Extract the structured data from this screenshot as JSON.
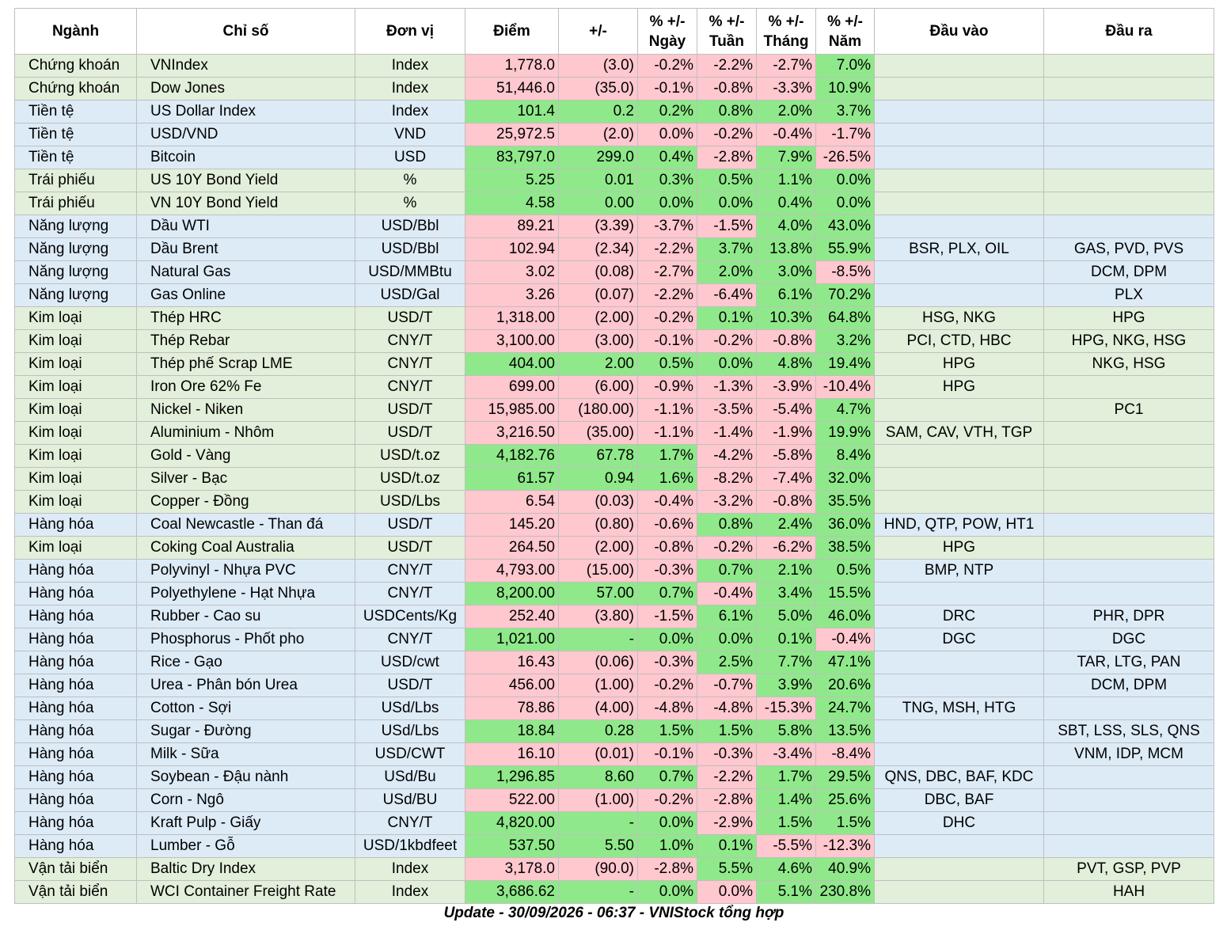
{
  "columns": [
    "Ngành",
    "Chỉ số",
    "Đơn vị",
    "Điểm",
    "+/-",
    "% +/-\nNgày",
    "% +/-\nTuần",
    "% +/-\nTháng",
    "% +/-\nNăm",
    "Đầu vào",
    "Đầu ra"
  ],
  "settings": {
    "sector_colors": {
      "Chứng khoán": "#e2efda",
      "Tiền tệ": "#ddebf7",
      "Trái phiếu": "#e2efda",
      "Năng lượng": "#ddebf7",
      "Kim loại": "#e2efda",
      "Hàng hóa": "#ddebf7",
      "Vận tải biển": "#e2efda"
    },
    "up_color": "#8fe98a",
    "down_color": "#ffc7ce"
  },
  "rows": [
    [
      "Chứng khoán",
      "VNIndex",
      "Index",
      "1,778.0",
      "(3.0)",
      "-0.2%",
      "-2.2%",
      "-2.7%",
      "7.0%",
      null,
      null
    ],
    [
      "Chứng khoán",
      "Dow Jones",
      "Index",
      "51,446.0",
      "(35.0)",
      "-0.1%",
      "-0.8%",
      "-3.3%",
      "10.9%",
      null,
      null
    ],
    [
      "Tiền tệ",
      "US Dollar Index",
      "Index",
      "101.4",
      "0.2",
      "0.2%",
      "0.8%",
      "2.0%",
      "3.7%",
      null,
      null
    ],
    [
      "Tiền tệ",
      "USD/VND",
      "VND",
      "25,972.5",
      "(2.0)",
      "0.0%",
      "-0.2%",
      "-0.4%",
      "-1.7%",
      null,
      null
    ],
    [
      "Tiền tệ",
      "Bitcoin",
      "USD",
      "83,797.0",
      "299.0",
      "0.4%",
      "-2.8%",
      "7.9%",
      "-26.5%",
      null,
      null
    ],
    [
      "Trái phiếu",
      "US 10Y Bond Yield",
      "%",
      "5.25",
      "0.01",
      "0.3%",
      "0.5%",
      "1.1%",
      "0.0%",
      null,
      null
    ],
    [
      "Trái phiếu",
      "VN 10Y Bond Yield",
      "%",
      "4.58",
      "0.00",
      "0.0%",
      "0.0%",
      "0.4%",
      "0.0%",
      null,
      null
    ],
    [
      "Năng lượng",
      "Dầu WTI",
      "USD/Bbl",
      "89.21",
      "(3.39)",
      "-3.7%",
      "-1.5%",
      "4.0%",
      "43.0%",
      null,
      null
    ],
    [
      "Năng lượng",
      "Dầu Brent",
      "USD/Bbl",
      "102.94",
      "(2.34)",
      "-2.2%",
      "3.7%",
      "13.8%",
      "55.9%",
      "BSR, PLX, OIL",
      "GAS, PVD, PVS"
    ],
    [
      "Năng lượng",
      "Natural Gas",
      "USD/MMBtu",
      "3.02",
      "(0.08)",
      "-2.7%",
      "2.0%",
      "3.0%",
      "-8.5%",
      null,
      "DCM, DPM"
    ],
    [
      "Năng lượng",
      "Gas Online",
      "USD/Gal",
      "3.26",
      "(0.07)",
      "-2.2%",
      "-6.4%",
      "6.1%",
      "70.2%",
      null,
      "PLX"
    ],
    [
      "Kim loại",
      "Thép HRC",
      "USD/T",
      "1,318.00",
      "(2.00)",
      "-0.2%",
      "0.1%",
      "10.3%",
      "64.8%",
      "HSG, NKG",
      "HPG"
    ],
    [
      "Kim loại",
      "Thép Rebar",
      "CNY/T",
      "3,100.00",
      "(3.00)",
      "-0.1%",
      "-0.2%",
      "-0.8%",
      "3.2%",
      "PCI, CTD, HBC",
      "HPG, NKG, HSG"
    ],
    [
      "Kim loại",
      "Thép phế Scrap LME",
      "CNY/T",
      "404.00",
      "2.00",
      "0.5%",
      "0.0%",
      "4.8%",
      "19.4%",
      "HPG",
      "NKG, HSG"
    ],
    [
      "Kim loại",
      "Iron Ore 62% Fe",
      "CNY/T",
      "699.00",
      "(6.00)",
      "-0.9%",
      "-1.3%",
      "-3.9%",
      "-10.4%",
      "HPG",
      null
    ],
    [
      "Kim loại",
      "Nickel - Niken",
      "USD/T",
      "15,985.00",
      "(180.00)",
      "-1.1%",
      "-3.5%",
      "-5.4%",
      "4.7%",
      null,
      "PC1"
    ],
    [
      "Kim loại",
      "Aluminium - Nhôm",
      "USD/T",
      "3,216.50",
      "(35.00)",
      "-1.1%",
      "-1.4%",
      "-1.9%",
      "19.9%",
      "SAM, CAV, VTH, TGP",
      null
    ],
    [
      "Kim loại",
      "Gold - Vàng",
      "USD/t.oz",
      "4,182.76",
      "67.78",
      "1.7%",
      "-4.2%",
      "-5.8%",
      "8.4%",
      null,
      null
    ],
    [
      "Kim loại",
      "Silver - Bạc",
      "USD/t.oz",
      "61.57",
      "0.94",
      "1.6%",
      "-8.2%",
      "-7.4%",
      "32.0%",
      null,
      null
    ],
    [
      "Kim loại",
      "Copper - Đồng",
      "USD/Lbs",
      "6.54",
      "(0.03)",
      "-0.4%",
      "-3.2%",
      "-0.8%",
      "35.5%",
      null,
      null
    ],
    [
      "Hàng hóa",
      "Coal Newcastle - Than đá",
      "USD/T",
      "145.20",
      "(0.80)",
      "-0.6%",
      "0.8%",
      "2.4%",
      "36.0%",
      "HND, QTP, POW, HT1",
      null
    ],
    [
      "Kim loại",
      "Coking Coal Australia",
      "USD/T",
      "264.50",
      "(2.00)",
      "-0.8%",
      "-0.2%",
      "-6.2%",
      "38.5%",
      "HPG",
      null
    ],
    [
      "Hàng hóa",
      "Polyvinyl - Nhựa PVC",
      "CNY/T",
      "4,793.00",
      "(15.00)",
      "-0.3%",
      "0.7%",
      "2.1%",
      "0.5%",
      "BMP, NTP",
      null
    ],
    [
      "Hàng hóa",
      "Polyethylene - Hạt Nhựa",
      "CNY/T",
      "8,200.00",
      "57.00",
      "0.7%",
      "-0.4%",
      "3.4%",
      "15.5%",
      null,
      null
    ],
    [
      "Hàng hóa",
      "Rubber - Cao su",
      "USDCents/Kg",
      "252.40",
      "(3.80)",
      "-1.5%",
      "6.1%",
      "5.0%",
      "46.0%",
      "DRC",
      "PHR, DPR"
    ],
    [
      "Hàng hóa",
      "Phosphorus - Phốt pho",
      "CNY/T",
      "1,021.00",
      "-",
      "0.0%",
      "0.0%",
      "0.1%",
      "-0.4%",
      "DGC",
      "DGC"
    ],
    [
      "Hàng hóa",
      "Rice - Gạo",
      "USD/cwt",
      "16.43",
      "(0.06)",
      "-0.3%",
      "2.5%",
      "7.7%",
      "47.1%",
      null,
      "TAR, LTG, PAN"
    ],
    [
      "Hàng hóa",
      "Urea - Phân bón Urea",
      "USD/T",
      "456.00",
      "(1.00)",
      "-0.2%",
      "-0.7%",
      "3.9%",
      "20.6%",
      null,
      "DCM, DPM"
    ],
    [
      "Hàng hóa",
      "Cotton - Sợi",
      "USd/Lbs",
      "78.86",
      "(4.00)",
      "-4.8%",
      "-4.8%",
      "-15.3%",
      "24.7%",
      "TNG, MSH, HTG",
      null
    ],
    [
      "Hàng hóa",
      "Sugar - Đường",
      "USd/Lbs",
      "18.84",
      "0.28",
      "1.5%",
      "1.5%",
      "5.8%",
      "13.5%",
      null,
      "SBT, LSS, SLS, QNS"
    ],
    [
      "Hàng hóa",
      "Milk - Sữa",
      "USD/CWT",
      "16.10",
      "(0.01)",
      "-0.1%",
      "-0.3%",
      "-3.4%",
      "-8.4%",
      null,
      "VNM, IDP, MCM"
    ],
    [
      "Hàng hóa",
      "Soybean - Đậu nành",
      "USd/Bu",
      "1,296.85",
      "8.60",
      "0.7%",
      "-2.2%",
      "1.7%",
      "29.5%",
      "QNS, DBC, BAF, KDC",
      null
    ],
    [
      "Hàng hóa",
      "Corn - Ngô",
      "USd/BU",
      "522.00",
      "(1.00)",
      "-0.2%",
      "-2.8%",
      "1.4%",
      "25.6%",
      "DBC, BAF",
      null
    ],
    [
      "Hàng hóa",
      "Kraft Pulp - Giấy",
      "CNY/T",
      "4,820.00",
      "-",
      "0.0%",
      "-2.9%",
      "1.5%",
      "1.5%",
      "DHC",
      null
    ],
    [
      "Hàng hóa",
      "Lumber - Gỗ",
      "USD/1kbdfeet",
      "537.50",
      "5.50",
      "1.0%",
      "0.1%",
      "-5.5%",
      "-12.3%",
      null,
      null
    ],
    [
      "Vận tải biển",
      "Baltic Dry Index",
      "Index",
      "3,178.0",
      "(90.0)",
      "-2.8%",
      "5.5%",
      "4.6%",
      "40.9%",
      null,
      "PVT, GSP, PVP"
    ],
    [
      "Vận tải biển",
      "WCI Container Freight Rate",
      "Index",
      "3,686.62",
      "-",
      "0.0%",
      "0.0%",
      "5.1%",
      "230.8%",
      null,
      "HAH"
    ]
  ],
  "shading": [
    "rrrrg",
    "rrrrg",
    "ggggg",
    "rrrrr",
    "ggrgr",
    "ggggg",
    "ggggg",
    "rrrgg",
    "rrggg",
    "rrggr",
    "rrrgg",
    "rrggg",
    "rrrrg",
    "ggggg",
    "rrrrr",
    "rrrrg",
    "rrrrg",
    "ggrrg",
    "ggrrg",
    "rrrrg",
    "rrggg",
    "rrrrg",
    "rrggg",
    "ggrgg",
    "rrggg",
    "ggggr",
    "rrggg",
    "rrrgg",
    "rrrrg",
    "ggggg",
    "rrrrr",
    "ggrgg",
    "rrrgg",
    "ggrgg",
    "gggrr",
    "rrggg",
    "ggrgg"
  ],
  "footer": "Update - 30/09/2026 - 06:37 - VNIStock tổng hợp"
}
